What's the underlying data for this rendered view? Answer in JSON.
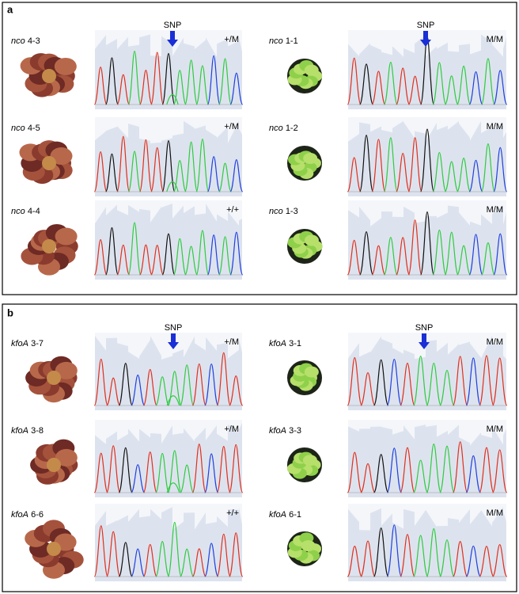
{
  "panels": [
    {
      "label": "a",
      "columns": [
        {
          "snp": "SNP",
          "samples": [
            {
              "gene": "nco",
              "id": "4-3",
              "genotype": "+/M"
            },
            {
              "gene": "nco",
              "id": "4-5",
              "genotype": "+/M"
            },
            {
              "gene": "nco",
              "id": "4-4",
              "genotype": "+/+"
            }
          ]
        },
        {
          "snp": "SNP",
          "samples": [
            {
              "gene": "nco",
              "id": "1-1",
              "genotype": "M/M"
            },
            {
              "gene": "nco",
              "id": "1-2",
              "genotype": "M/M"
            },
            {
              "gene": "nco",
              "id": "1-3",
              "genotype": "M/M"
            }
          ]
        }
      ]
    },
    {
      "label": "b",
      "columns": [
        {
          "snp": "SNP",
          "samples": [
            {
              "gene": "kfoA",
              "id": "3-7",
              "genotype": "+/M"
            },
            {
              "gene": "kfoA",
              "id": "3-8",
              "genotype": "+/M"
            },
            {
              "gene": "kfoA",
              "id": "6-6",
              "genotype": "+/+"
            }
          ]
        },
        {
          "snp": "SNP",
          "samples": [
            {
              "gene": "kfoA",
              "id": "3-1",
              "genotype": "M/M"
            },
            {
              "gene": "kfoA",
              "id": "3-3",
              "genotype": "M/M"
            },
            {
              "gene": "kfoA",
              "id": "6-1",
              "genotype": "M/M"
            }
          ]
        }
      ]
    }
  ]
}
